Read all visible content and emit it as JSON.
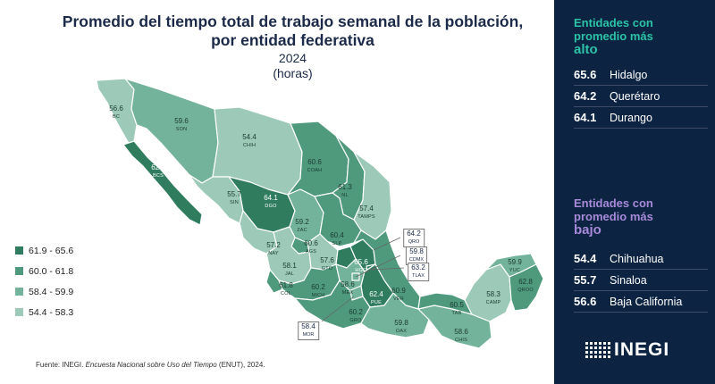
{
  "title": {
    "line1": "Promedio del tiempo total de trabajo semanal de la población,",
    "line2": "por entidad federativa",
    "year": "2024",
    "unit": "(horas)"
  },
  "legend": [
    {
      "label": "61.9 - 65.6",
      "color": "#2f7d5e"
    },
    {
      "label": "60.0 - 61.8",
      "color": "#4f9a7d"
    },
    {
      "label": "58.4 - 59.9",
      "color": "#74b39b"
    },
    {
      "label": "54.4 - 58.3",
      "color": "#9cc9b8"
    }
  ],
  "states": [
    {
      "abbr": "BC",
      "value": "56.6"
    },
    {
      "abbr": "SON",
      "value": "59.6"
    },
    {
      "abbr": "CHIH",
      "value": "54.4"
    },
    {
      "abbr": "BCS",
      "value": "62.6"
    },
    {
      "abbr": "COAH",
      "value": "60.6"
    },
    {
      "abbr": "NL",
      "value": "61.3"
    },
    {
      "abbr": "DGO",
      "value": "64.1"
    },
    {
      "abbr": "SIN",
      "value": "55.7"
    },
    {
      "abbr": "TAMPS",
      "value": "57.4"
    },
    {
      "abbr": "ZAC",
      "value": "59.2"
    },
    {
      "abbr": "SLP",
      "value": "60.4"
    },
    {
      "abbr": "NAY",
      "value": "57.2"
    },
    {
      "abbr": "AGS",
      "value": "60.6"
    },
    {
      "abbr": "JAL",
      "value": "58.1"
    },
    {
      "abbr": "GTO",
      "value": "57.6"
    },
    {
      "abbr": "QRO",
      "value": "64.2"
    },
    {
      "abbr": "CDMX",
      "value": "59.8"
    },
    {
      "abbr": "HGO",
      "value": "65.6"
    },
    {
      "abbr": "TLAX",
      "value": "63.2"
    },
    {
      "abbr": "COL",
      "value": "61.8"
    },
    {
      "abbr": "MICH",
      "value": "60.2"
    },
    {
      "abbr": "MEX",
      "value": "58.6"
    },
    {
      "abbr": "PUE",
      "value": "62.4"
    },
    {
      "abbr": "VER",
      "value": "60.9"
    },
    {
      "abbr": "MOR",
      "value": "58.4"
    },
    {
      "abbr": "GRO",
      "value": "60.2"
    },
    {
      "abbr": "OAX",
      "value": "59.8"
    },
    {
      "abbr": "TAB",
      "value": "60.5"
    },
    {
      "abbr": "CHIS",
      "value": "58.6"
    },
    {
      "abbr": "CAMP",
      "value": "58.3"
    },
    {
      "abbr": "YUC",
      "value": "59.9"
    },
    {
      "abbr": "QROO",
      "value": "62.8"
    }
  ],
  "source": {
    "prefix": "Fuente: INEGI. ",
    "survey": "Encuesta Nacional sobre Uso del Tiempo",
    "suffix": " (ENUT), 2024."
  },
  "panel": {
    "high_heading_line1": "Entidades con",
    "high_heading_line2": "promedio más",
    "high_heading_big": "alto",
    "high": [
      {
        "value": "65.6",
        "name": "Hidalgo"
      },
      {
        "value": "64.2",
        "name": "Querétaro"
      },
      {
        "value": "64.1",
        "name": "Durango"
      }
    ],
    "low_heading_line1": "Entidades con",
    "low_heading_line2": "promedio más",
    "low_heading_big": "bajo",
    "low": [
      {
        "value": "54.4",
        "name": "Chihuahua"
      },
      {
        "value": "55.7",
        "name": "Sinaloa"
      },
      {
        "value": "56.6",
        "name": "Baja California"
      }
    ],
    "brand": "INEGI"
  }
}
